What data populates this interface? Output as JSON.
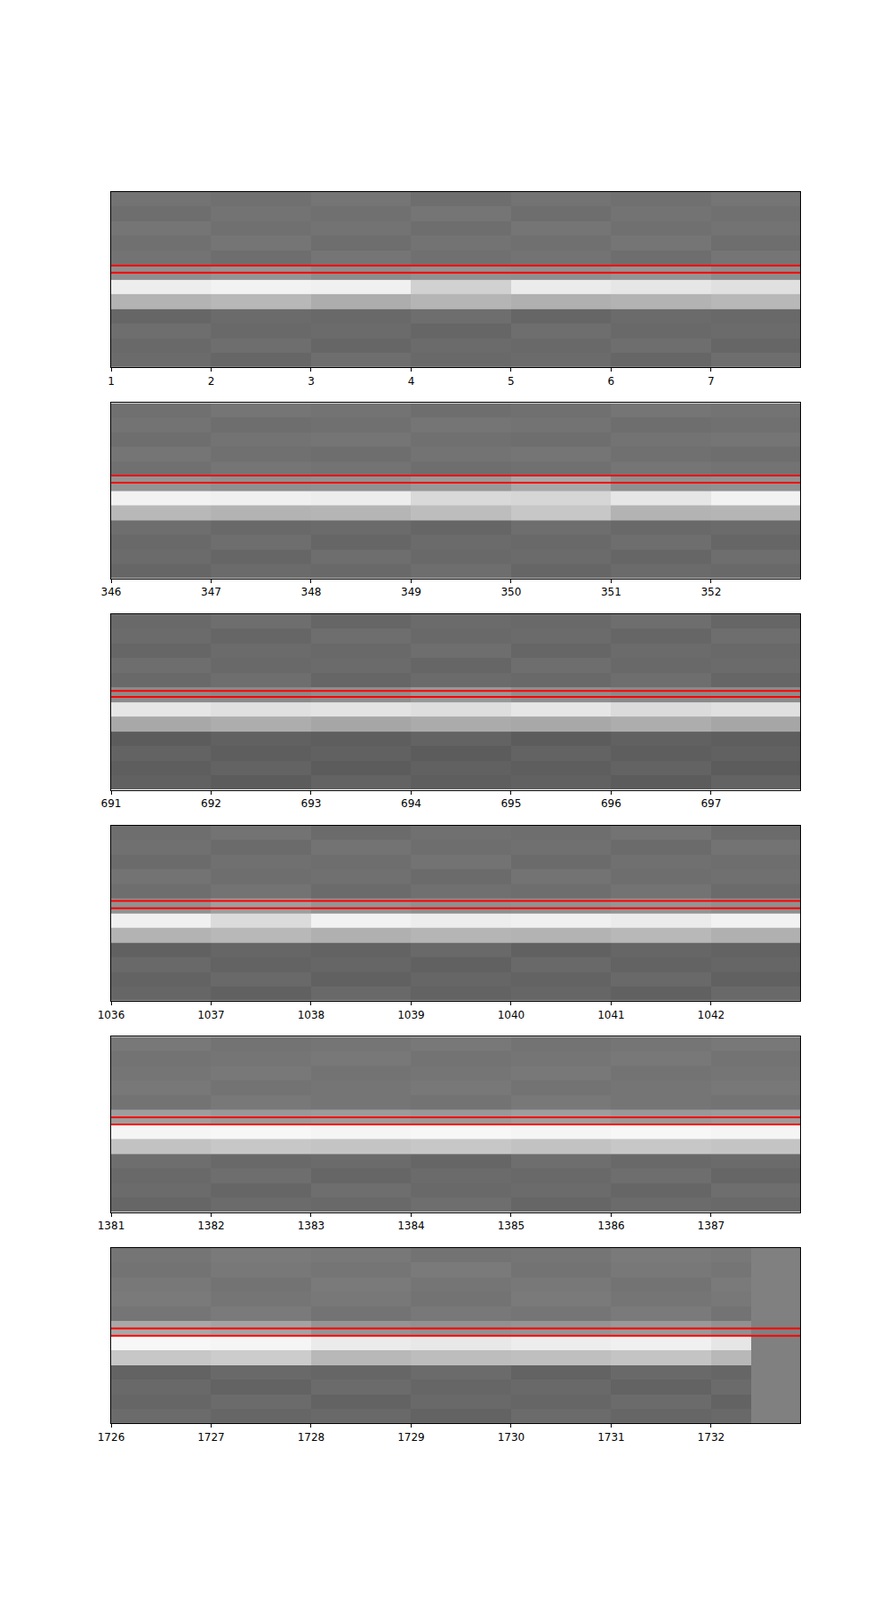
{
  "chart_data": [
    {
      "type": "heatmap",
      "tick_labels": "x",
      "color": "#ff0000",
      "xlim": [
        1,
        7.89
      ],
      "xticks": [
        1,
        2,
        3,
        4,
        5,
        6,
        7
      ],
      "ylim": [
        0,
        1
      ],
      "zlim": [
        0,
        1
      ],
      "x_edges": [
        1,
        2,
        3,
        4,
        5,
        6,
        7,
        7.89
      ],
      "y_edges": [
        0,
        0.0833,
        0.1667,
        0.25,
        0.3333,
        0.4167,
        0.5,
        0.5833,
        0.6667,
        0.75,
        0.8333,
        0.9167,
        1
      ],
      "z": [
        [
          0.42,
          0.4,
          0.43,
          0.41,
          0.42,
          0.4,
          0.43
        ],
        [
          0.41,
          0.43,
          0.4,
          0.42,
          0.41,
          0.43,
          0.4
        ],
        [
          0.43,
          0.41,
          0.42,
          0.4,
          0.43,
          0.41,
          0.42
        ],
        [
          0.4,
          0.42,
          0.41,
          0.43,
          0.4,
          0.42,
          0.41
        ],
        [
          0.7,
          0.72,
          0.68,
          0.71,
          0.69,
          0.7,
          0.72
        ],
        [
          0.93,
          0.95,
          0.94,
          0.82,
          0.92,
          0.9,
          0.88
        ],
        [
          0.56,
          0.58,
          0.55,
          0.57,
          0.56,
          0.58,
          0.55
        ],
        [
          0.45,
          0.43,
          0.46,
          0.44,
          0.45,
          0.43,
          0.46
        ],
        [
          0.44,
          0.46,
          0.43,
          0.45,
          0.44,
          0.46,
          0.43
        ],
        [
          0.46,
          0.44,
          0.45,
          0.43,
          0.46,
          0.44,
          0.45
        ],
        [
          0.43,
          0.45,
          0.44,
          0.46,
          0.43,
          0.45,
          0.44
        ],
        [
          0.45,
          0.44,
          0.46,
          0.43,
          0.45,
          0.44,
          0.46
        ]
      ],
      "hlines": [
        0.54,
        0.58
      ]
    },
    {
      "type": "heatmap",
      "tick_labels": "x",
      "color": "#ff0000",
      "xlim": [
        346,
        352.89
      ],
      "xticks": [
        346,
        347,
        348,
        349,
        350,
        351,
        352
      ],
      "ylim": [
        0,
        1
      ],
      "zlim": [
        0,
        1
      ],
      "x_edges": [
        346,
        347,
        348,
        349,
        350,
        351,
        352,
        352.89
      ],
      "y_edges": [
        0,
        0.0833,
        0.1667,
        0.25,
        0.3333,
        0.4167,
        0.5,
        0.5833,
        0.6667,
        0.75,
        0.8333,
        0.9167,
        1
      ],
      "z": [
        [
          0.4,
          0.42,
          0.41,
          0.43,
          0.4,
          0.42,
          0.41
        ],
        [
          0.42,
          0.4,
          0.43,
          0.41,
          0.42,
          0.4,
          0.43
        ],
        [
          0.41,
          0.43,
          0.4,
          0.42,
          0.41,
          0.43,
          0.4
        ],
        [
          0.43,
          0.41,
          0.42,
          0.4,
          0.43,
          0.41,
          0.42
        ],
        [
          0.72,
          0.7,
          0.71,
          0.74,
          0.78,
          0.7,
          0.71
        ],
        [
          0.95,
          0.94,
          0.93,
          0.85,
          0.84,
          0.9,
          0.95
        ],
        [
          0.58,
          0.56,
          0.57,
          0.6,
          0.66,
          0.56,
          0.57
        ],
        [
          0.44,
          0.46,
          0.45,
          0.43,
          0.44,
          0.46,
          0.45
        ],
        [
          0.46,
          0.44,
          0.43,
          0.45,
          0.46,
          0.44,
          0.43
        ],
        [
          0.43,
          0.45,
          0.46,
          0.44,
          0.43,
          0.45,
          0.46
        ],
        [
          0.45,
          0.43,
          0.44,
          0.46,
          0.45,
          0.43,
          0.44
        ],
        [
          0.44,
          0.46,
          0.45,
          0.43,
          0.44,
          0.46,
          0.45
        ]
      ],
      "hlines": [
        0.547,
        0.587
      ]
    },
    {
      "type": "heatmap",
      "tick_labels": "x",
      "color": "#ff0000",
      "xlim": [
        691,
        697.89
      ],
      "xticks": [
        691,
        692,
        693,
        694,
        695,
        696,
        697
      ],
      "ylim": [
        0,
        1
      ],
      "zlim": [
        0,
        1
      ],
      "x_edges": [
        691,
        692,
        693,
        694,
        695,
        696,
        697,
        697.89
      ],
      "y_edges": [
        0,
        0.0833,
        0.1667,
        0.25,
        0.3333,
        0.4167,
        0.5,
        0.5833,
        0.6667,
        0.75,
        0.8333,
        0.9167,
        1
      ],
      "z": [
        [
          0.38,
          0.36,
          0.39,
          0.37,
          0.38,
          0.36,
          0.39
        ],
        [
          0.37,
          0.39,
          0.36,
          0.38,
          0.37,
          0.39,
          0.36
        ],
        [
          0.39,
          0.37,
          0.38,
          0.36,
          0.39,
          0.37,
          0.38
        ],
        [
          0.36,
          0.38,
          0.37,
          0.39,
          0.36,
          0.38,
          0.37
        ],
        [
          0.66,
          0.68,
          0.65,
          0.67,
          0.66,
          0.68,
          0.65
        ],
        [
          0.9,
          0.88,
          0.89,
          0.87,
          0.9,
          0.86,
          0.88
        ],
        [
          0.55,
          0.54,
          0.56,
          0.6,
          0.56,
          0.54,
          0.55
        ],
        [
          0.41,
          0.43,
          0.4,
          0.42,
          0.41,
          0.43,
          0.4
        ],
        [
          0.43,
          0.41,
          0.42,
          0.4,
          0.43,
          0.41,
          0.42
        ],
        [
          0.4,
          0.42,
          0.41,
          0.43,
          0.4,
          0.42,
          0.41
        ],
        [
          0.42,
          0.4,
          0.43,
          0.41,
          0.42,
          0.4,
          0.43
        ],
        [
          0.41,
          0.43,
          0.4,
          0.42,
          0.41,
          0.43,
          0.4
        ]
      ],
      "hlines": [
        0.529,
        0.564
      ]
    },
    {
      "type": "heatmap",
      "tick_labels": "x",
      "color": "#ff0000",
      "xlim": [
        1036,
        1042.89
      ],
      "xticks": [
        1036,
        1037,
        1038,
        1039,
        1040,
        1041,
        1042
      ],
      "ylim": [
        0,
        1
      ],
      "zlim": [
        0,
        1
      ],
      "x_edges": [
        1036,
        1037,
        1038,
        1039,
        1040,
        1041,
        1042,
        1042.89
      ],
      "y_edges": [
        0,
        0.0833,
        0.1667,
        0.25,
        0.3333,
        0.4167,
        0.5,
        0.5833,
        0.6667,
        0.75,
        0.8333,
        0.9167,
        1
      ],
      "z": [
        [
          0.4,
          0.38,
          0.41,
          0.39,
          0.4,
          0.38,
          0.41
        ],
        [
          0.39,
          0.41,
          0.38,
          0.4,
          0.39,
          0.41,
          0.38
        ],
        [
          0.41,
          0.39,
          0.4,
          0.38,
          0.41,
          0.39,
          0.4
        ],
        [
          0.38,
          0.4,
          0.39,
          0.41,
          0.38,
          0.4,
          0.39
        ],
        [
          0.7,
          0.72,
          0.69,
          0.71,
          0.7,
          0.72,
          0.69
        ],
        [
          0.94,
          0.86,
          0.95,
          0.93,
          0.94,
          0.92,
          0.95
        ],
        [
          0.57,
          0.62,
          0.58,
          0.56,
          0.57,
          0.58,
          0.56
        ],
        [
          0.43,
          0.45,
          0.42,
          0.44,
          0.43,
          0.45,
          0.42
        ],
        [
          0.45,
          0.43,
          0.44,
          0.42,
          0.45,
          0.43,
          0.44
        ],
        [
          0.42,
          0.44,
          0.43,
          0.45,
          0.42,
          0.44,
          0.43
        ],
        [
          0.44,
          0.42,
          0.45,
          0.43,
          0.44,
          0.42,
          0.45
        ],
        [
          0.43,
          0.45,
          0.42,
          0.44,
          0.43,
          0.45,
          0.42
        ]
      ],
      "hlines": [
        0.529,
        0.57
      ]
    },
    {
      "type": "heatmap",
      "tick_labels": "x",
      "color": "#ff0000",
      "xlim": [
        1381,
        1387.89
      ],
      "xticks": [
        1381,
        1382,
        1383,
        1384,
        1385,
        1386,
        1387
      ],
      "ylim": [
        0,
        1
      ],
      "zlim": [
        0,
        1
      ],
      "x_edges": [
        1381,
        1382,
        1383,
        1384,
        1385,
        1386,
        1387,
        1387.89
      ],
      "y_edges": [
        0,
        0.0833,
        0.1667,
        0.25,
        0.3333,
        0.4167,
        0.5,
        0.5833,
        0.6667,
        0.75,
        0.8333,
        0.9167,
        1
      ],
      "z": [
        [
          0.4,
          0.42,
          0.41,
          0.43,
          0.4,
          0.42,
          0.41
        ],
        [
          0.42,
          0.4,
          0.43,
          0.41,
          0.42,
          0.4,
          0.43
        ],
        [
          0.41,
          0.43,
          0.4,
          0.42,
          0.41,
          0.43,
          0.4
        ],
        [
          0.43,
          0.41,
          0.42,
          0.4,
          0.43,
          0.41,
          0.42
        ],
        [
          0.76,
          0.78,
          0.77,
          0.78,
          0.76,
          0.78,
          0.77
        ],
        [
          0.96,
          0.97,
          0.96,
          0.97,
          0.96,
          0.97,
          0.96
        ],
        [
          0.62,
          0.6,
          0.61,
          0.6,
          0.62,
          0.6,
          0.61
        ],
        [
          0.45,
          0.47,
          0.46,
          0.45,
          0.47,
          0.46,
          0.45
        ],
        [
          0.47,
          0.45,
          0.46,
          0.47,
          0.45,
          0.46,
          0.47
        ],
        [
          0.46,
          0.47,
          0.45,
          0.46,
          0.47,
          0.45,
          0.46
        ],
        [
          0.45,
          0.46,
          0.47,
          0.45,
          0.46,
          0.47,
          0.45
        ],
        [
          0.47,
          0.45,
          0.46,
          0.47,
          0.45,
          0.46,
          0.47
        ]
      ],
      "hlines": [
        0.5,
        0.541
      ]
    },
    {
      "type": "heatmap",
      "tick_labels": "x",
      "color": "#ff0000",
      "xlim": [
        1726,
        1732.89
      ],
      "xticks": [
        1726,
        1727,
        1728,
        1729,
        1730,
        1731,
        1732
      ],
      "ylim": [
        0,
        1
      ],
      "zlim": [
        0,
        1
      ],
      "x_edges": [
        1726,
        1727,
        1728,
        1729,
        1730,
        1731,
        1732,
        1732.4,
        1732.89
      ],
      "y_edges": [
        0,
        0.0833,
        0.1667,
        0.25,
        0.3333,
        0.4167,
        0.5,
        0.5833,
        0.6667,
        0.75,
        0.8333,
        0.9167,
        1
      ],
      "z": [
        [
          0.42,
          0.4,
          0.41,
          0.39,
          0.42,
          0.4,
          0.41,
          0.5
        ],
        [
          0.4,
          0.42,
          0.39,
          0.41,
          0.4,
          0.42,
          0.39,
          0.5
        ],
        [
          0.41,
          0.39,
          0.42,
          0.4,
          0.41,
          0.39,
          0.42,
          0.5
        ],
        [
          0.39,
          0.41,
          0.4,
          0.42,
          0.39,
          0.41,
          0.4,
          0.5
        ],
        [
          0.78,
          0.8,
          0.72,
          0.74,
          0.75,
          0.77,
          0.72,
          0.5
        ],
        [
          0.97,
          0.96,
          0.92,
          0.91,
          0.93,
          0.94,
          0.9,
          0.5
        ],
        [
          0.66,
          0.64,
          0.58,
          0.57,
          0.58,
          0.6,
          0.57,
          0.5
        ],
        [
          0.46,
          0.48,
          0.45,
          0.47,
          0.46,
          0.48,
          0.45,
          0.5
        ],
        [
          0.48,
          0.46,
          0.47,
          0.45,
          0.48,
          0.46,
          0.47,
          0.5
        ],
        [
          0.47,
          0.45,
          0.48,
          0.46,
          0.47,
          0.45,
          0.48,
          0.5
        ],
        [
          0.45,
          0.47,
          0.46,
          0.48,
          0.45,
          0.47,
          0.46,
          0.5
        ],
        [
          0.46,
          0.48,
          0.47,
          0.45,
          0.46,
          0.48,
          0.47,
          0.5
        ]
      ],
      "hlines": [
        0.5,
        0.541
      ]
    }
  ]
}
